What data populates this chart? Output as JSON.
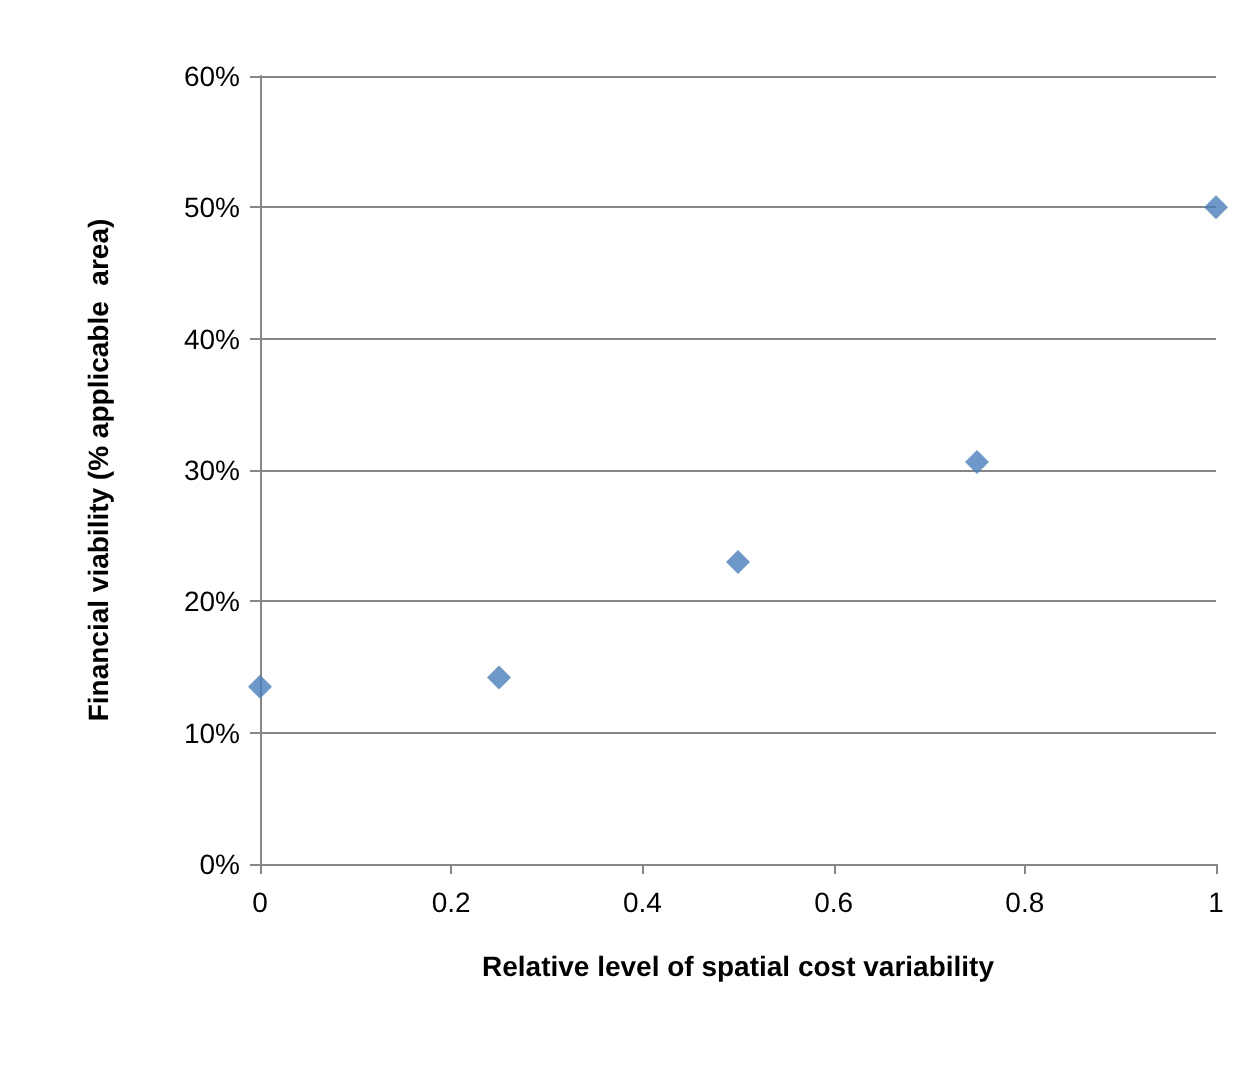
{
  "chart_data": {
    "type": "scatter",
    "xlabel": "Relative level of spatial cost variability",
    "ylabel": "Financial viability (% applicable  area)",
    "x": [
      0,
      0.25,
      0.5,
      0.75,
      1
    ],
    "series": [
      {
        "color": "#4a7ebb",
        "values": [
          13.5,
          14.2,
          23.0,
          30.6,
          50.0
        ]
      }
    ],
    "xlim": [
      0,
      1
    ],
    "xticks": [
      0,
      0.2,
      0.4,
      0.6,
      0.8,
      1
    ],
    "ylim": [
      0,
      60
    ],
    "yticks": [
      {
        "value": 0,
        "label": "0%"
      },
      {
        "value": 10,
        "label": "10%"
      },
      {
        "value": 20,
        "label": "20%"
      },
      {
        "value": 30,
        "label": "30%"
      },
      {
        "value": 40,
        "label": "40%"
      },
      {
        "value": 50,
        "label": "50%"
      },
      {
        "value": 60,
        "label": "60%"
      }
    ],
    "grid": "y",
    "marker": "diamond"
  }
}
